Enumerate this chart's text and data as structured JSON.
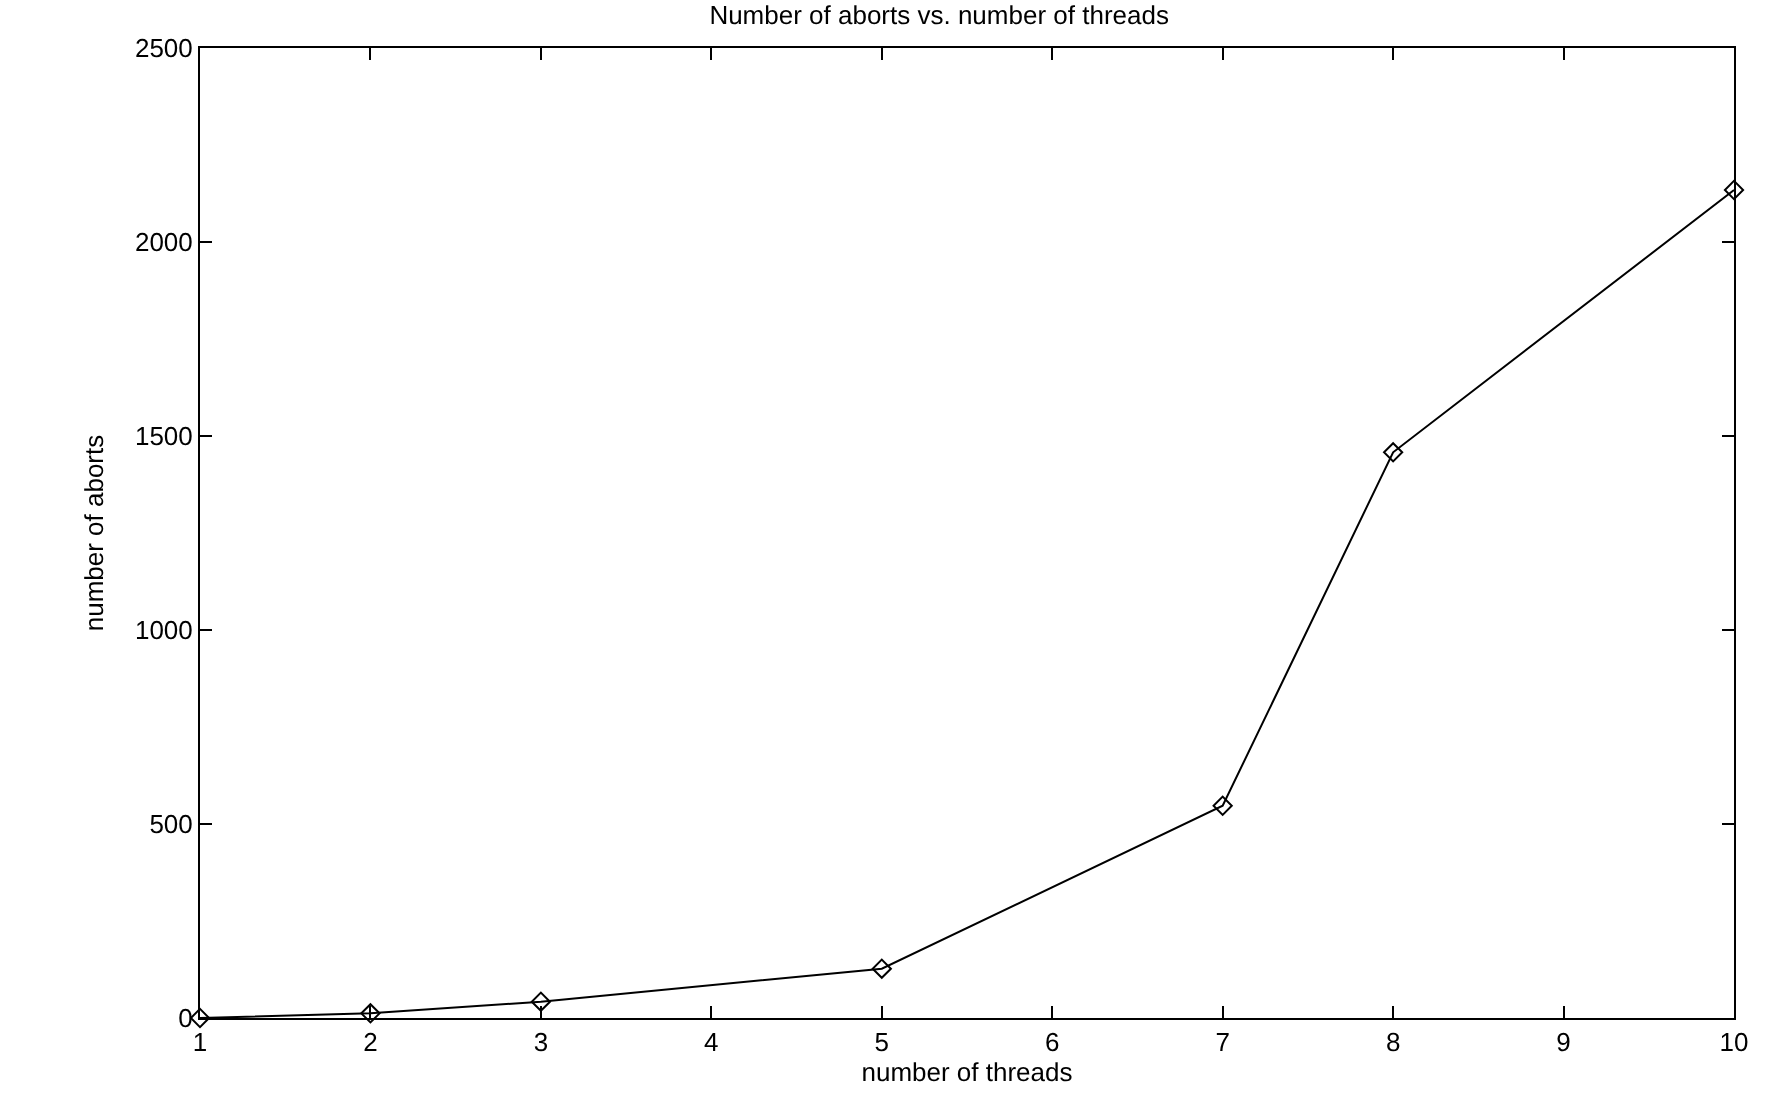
{
  "chart_data": {
    "type": "line",
    "title": "Number of aborts vs. number of threads",
    "xlabel": "number of threads",
    "ylabel": "number of aborts",
    "x": [
      1,
      2,
      3,
      5,
      7,
      8,
      10
    ],
    "series": [
      {
        "color": "#000000",
        "values": [
          0,
          12,
          42,
          127,
          547,
          1458,
          2134
        ]
      }
    ],
    "xlim": [
      1,
      10
    ],
    "xticks": [
      1,
      2,
      3,
      4,
      5,
      6,
      7,
      8,
      9,
      10
    ],
    "ylim": [
      0,
      2500
    ],
    "yticks": [
      0,
      500,
      1000,
      1500,
      2000,
      2500
    ],
    "grid": false,
    "marker": "diamond",
    "line_style": "solid"
  }
}
